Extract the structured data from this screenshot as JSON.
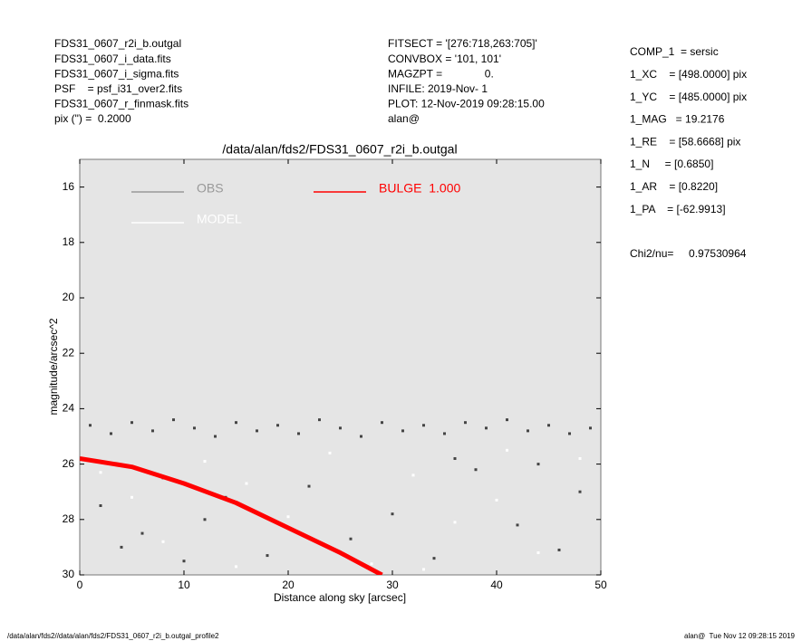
{
  "header": {
    "left": [
      "FDS31_0607_r2i_b.outgal",
      "FDS31_0607_i_data.fits",
      "FDS31_0607_i_sigma.fits",
      "PSF    = psf_i31_over2.fits",
      "FDS31_0607_r_finmask.fits",
      "pix (\") =  0.2000"
    ],
    "middle": [
      "FITSECT = '[276:718,263:705]'",
      "CONVBOX = '101, 101'",
      "MAGZPT =              0.",
      "INFILE: 2019-Nov- 1",
      "PLOT: 12-Nov-2019 09:28:15.00",
      "alan@"
    ],
    "right": [
      "COMP_1  = sersic",
      "1_XC    = [498.0000] pix",
      "1_YC    = [485.0000] pix",
      "1_MAG   = 19.2176",
      "1_RE    = [58.6668] pix",
      "1_N     = [0.6850]",
      "1_AR    = [0.8220]",
      "1_PA    = [-62.9913]"
    ],
    "chi2": "Chi2/nu=     0.97530964"
  },
  "footer": {
    "left": "/data/alan/fds2//data/alan/fds2/FDS31_0607_r2i_b.outgal_profile2",
    "right": "alan@  Tue Nov 12 09:28:15 2019"
  },
  "chart_data": {
    "type": "scatter",
    "title": "/data/alan/fds2/FDS31_0607_r2i_b.outgal",
    "x_label": "Distance along sky [arcsec]",
    "y_label": "magnitude/arcsec^2",
    "xlim": [
      0,
      50
    ],
    "ylim": [
      30,
      15
    ],
    "xticks": [
      0,
      10,
      20,
      30,
      40,
      50
    ],
    "yticks": [
      16,
      18,
      20,
      22,
      24,
      26,
      28,
      30
    ],
    "background": "#e5e5e5",
    "series": [
      {
        "name": "OBS",
        "color": "#444444",
        "legend_color": "#999999",
        "style": "points",
        "x": [
          1,
          3,
          5,
          7,
          9,
          11,
          13,
          15,
          17,
          19,
          21,
          23,
          25,
          27,
          29,
          31,
          33,
          35,
          37,
          39,
          41,
          43,
          45,
          47,
          49,
          2,
          4,
          6,
          8,
          10,
          12,
          14,
          18,
          22,
          26,
          30,
          34,
          38,
          42,
          46,
          48,
          36,
          44
        ],
        "values": [
          24.6,
          24.9,
          24.5,
          24.8,
          24.4,
          24.7,
          25.0,
          24.5,
          24.8,
          24.6,
          24.9,
          24.4,
          24.7,
          25.0,
          24.5,
          24.8,
          24.6,
          24.9,
          24.5,
          24.7,
          24.4,
          24.8,
          24.6,
          24.9,
          24.7,
          27.5,
          29.0,
          28.5,
          26.5,
          29.5,
          28.0,
          27.2,
          29.3,
          26.8,
          28.7,
          27.8,
          29.4,
          26.2,
          28.2,
          29.1,
          27.0,
          25.8,
          26.0
        ]
      },
      {
        "name": "MODEL",
        "color": "#ffffff",
        "legend_color": "#ffffff",
        "style": "points",
        "x": [
          2,
          5,
          8,
          12,
          16,
          20,
          24,
          28,
          32,
          36,
          40,
          44,
          48,
          15,
          33,
          41
        ],
        "values": [
          26.3,
          27.2,
          28.8,
          25.9,
          26.7,
          27.9,
          25.6,
          29.6,
          26.4,
          28.1,
          27.3,
          29.2,
          25.8,
          29.7,
          29.8,
          25.5
        ]
      },
      {
        "name": "BULGE  1.000",
        "color": "#ff0000",
        "legend_color": "#ff0000",
        "style": "line",
        "x": [
          0,
          5,
          10,
          15,
          20,
          25,
          29
        ],
        "values": [
          25.8,
          26.1,
          26.7,
          27.4,
          28.3,
          29.2,
          30
        ]
      }
    ]
  }
}
